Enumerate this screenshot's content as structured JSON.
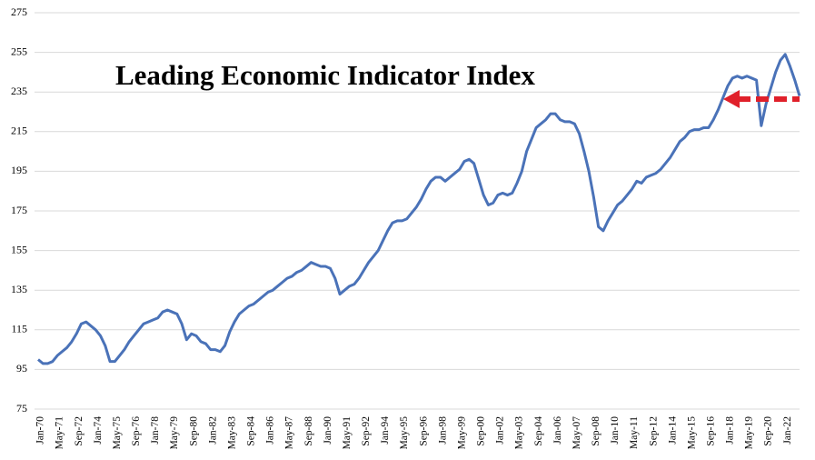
{
  "chart_data": {
    "type": "line",
    "title": "Leading Economic Indicator Index",
    "categories": [
      "Jan-70",
      null,
      null,
      null,
      "May-71",
      null,
      null,
      null,
      "Sep-72",
      null,
      null,
      null,
      "Jan-74",
      null,
      null,
      null,
      "May-75",
      null,
      null,
      null,
      "Sep-76",
      null,
      null,
      null,
      "Jan-78",
      null,
      null,
      null,
      "May-79",
      null,
      null,
      null,
      "Sep-80",
      null,
      null,
      null,
      "Jan-82",
      null,
      null,
      null,
      "May-83",
      null,
      null,
      null,
      "Sep-84",
      null,
      null,
      null,
      "Jan-86",
      null,
      null,
      null,
      "May-87",
      null,
      null,
      null,
      "Sep-88",
      null,
      null,
      null,
      "Jan-90",
      null,
      null,
      null,
      "May-91",
      null,
      null,
      null,
      "Sep-92",
      null,
      null,
      null,
      "Jan-94",
      null,
      null,
      null,
      "May-95",
      null,
      null,
      null,
      "Sep-96",
      null,
      null,
      null,
      "Jan-98",
      null,
      null,
      null,
      "May-99",
      null,
      null,
      null,
      "Sep-00",
      null,
      null,
      null,
      "Jan-02",
      null,
      null,
      null,
      "May-03",
      null,
      null,
      null,
      "Sep-04",
      null,
      null,
      null,
      "Jan-06",
      null,
      null,
      null,
      "May-07",
      null,
      null,
      null,
      "Sep-08",
      null,
      null,
      null,
      "Jan-10",
      null,
      null,
      null,
      "May-11",
      null,
      null,
      null,
      "Sep-12",
      null,
      null,
      null,
      "Jan-14",
      null,
      null,
      null,
      "May-15",
      null,
      null,
      null,
      "Sep-16",
      null,
      null,
      null,
      "Jan-18",
      null,
      null,
      null,
      "May-19",
      null,
      null,
      null,
      "Sep-20",
      null,
      null,
      null,
      "Jan-22",
      null,
      null,
      null
    ],
    "values": [
      100,
      98,
      98,
      99,
      102,
      104,
      106,
      109,
      113,
      118,
      119,
      117,
      115,
      112,
      107,
      99,
      99,
      102,
      105,
      109,
      112,
      115,
      118,
      119,
      120,
      121,
      124,
      125,
      124,
      123,
      118,
      110,
      113,
      112,
      109,
      108,
      105,
      105,
      104,
      107,
      114,
      119,
      123,
      125,
      127,
      128,
      130,
      132,
      134,
      135,
      137,
      139,
      141,
      142,
      144,
      145,
      147,
      149,
      148,
      147,
      147,
      146,
      141,
      133,
      135,
      137,
      138,
      141,
      145,
      149,
      152,
      155,
      160,
      165,
      169,
      170,
      170,
      171,
      174,
      177,
      181,
      186,
      190,
      192,
      192,
      190,
      192,
      194,
      196,
      200,
      201,
      199,
      191,
      183,
      178,
      179,
      183,
      184,
      183,
      184,
      189,
      195,
      205,
      211,
      217,
      219,
      221,
      224,
      224,
      221,
      220,
      220,
      219,
      214,
      205,
      195,
      182,
      167,
      165,
      170,
      174,
      178,
      180,
      183,
      186,
      190,
      189,
      192,
      193,
      194,
      196,
      199,
      202,
      206,
      210,
      212,
      215,
      216,
      216,
      217,
      217,
      221,
      226,
      232,
      238,
      242,
      243,
      242,
      243,
      242,
      241,
      218,
      229,
      237,
      245,
      251,
      254,
      248,
      241,
      233
    ],
    "color": "#4a72b8",
    "ylim": [
      75,
      275
    ],
    "yticks": [
      75,
      95,
      115,
      135,
      155,
      175,
      195,
      215,
      235,
      255,
      275
    ],
    "grid": true
  }
}
